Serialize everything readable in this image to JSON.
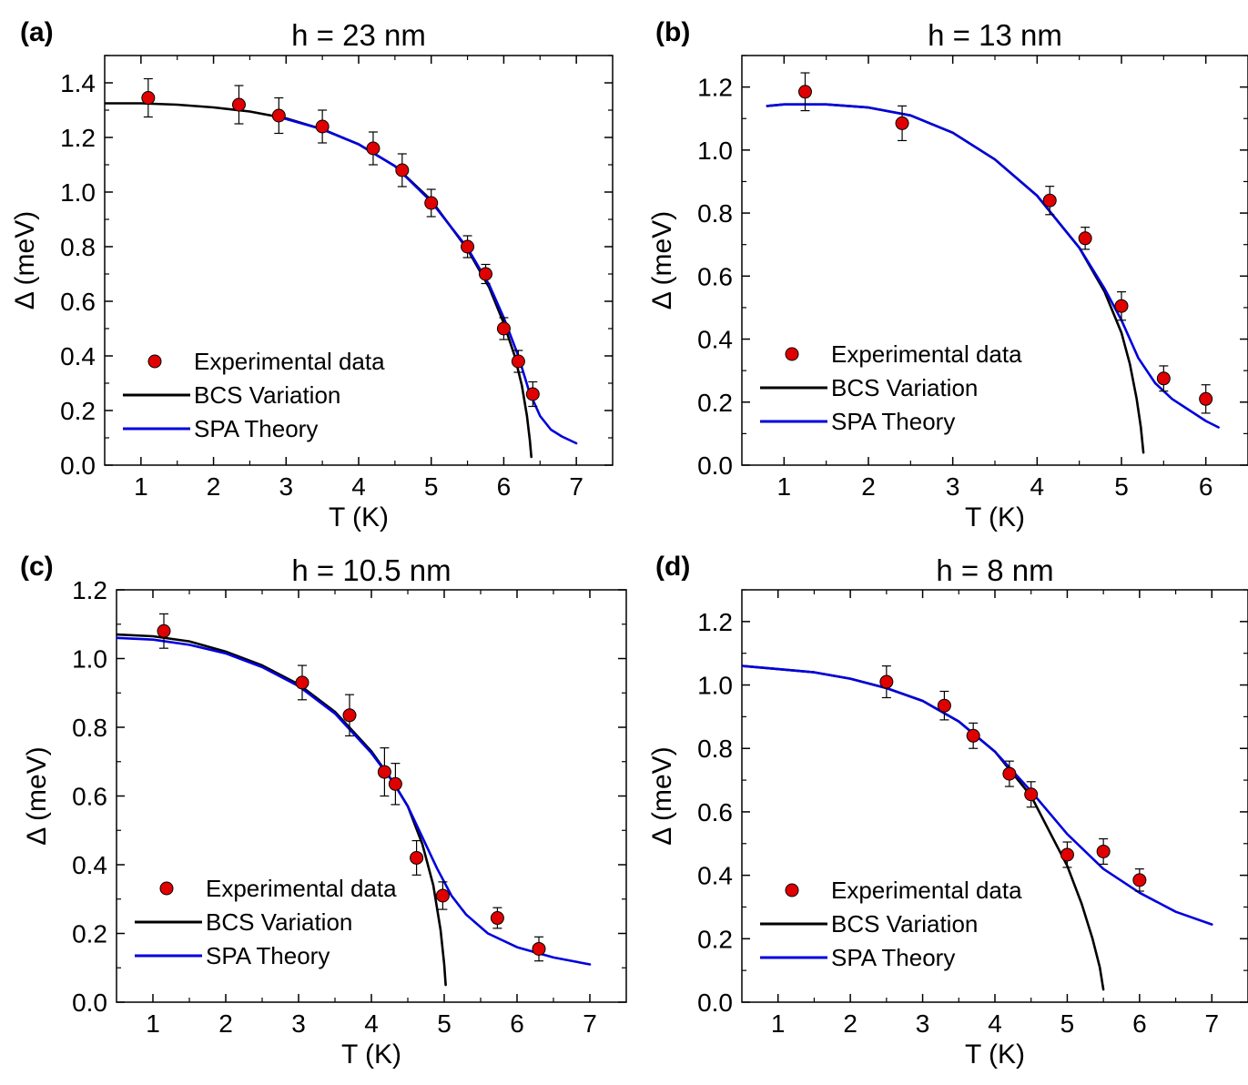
{
  "chart_data": [
    {
      "panel": "(a)",
      "type": "scatter",
      "title": "h = 23 nm",
      "xlabel": "T (K)",
      "ylabel": "Δ (meV)",
      "xlim": [
        0.5,
        7.5
      ],
      "ylim": [
        0,
        1.5
      ],
      "xticks": [
        1,
        2,
        3,
        4,
        5,
        6,
        7
      ],
      "yticks": [
        0.0,
        0.2,
        0.4,
        0.6,
        0.8,
        1.0,
        1.2,
        1.4
      ],
      "grid": false,
      "legend_position": "bottom-left",
      "series": [
        {
          "name": "Experimental data",
          "kind": "points",
          "color": "#e00000",
          "x": [
            1.1,
            2.35,
            2.9,
            3.5,
            4.2,
            4.6,
            5.0,
            5.5,
            5.75,
            6.0,
            6.2,
            6.4
          ],
          "y": [
            1.345,
            1.32,
            1.28,
            1.24,
            1.16,
            1.08,
            0.96,
            0.8,
            0.7,
            0.5,
            0.38,
            0.26
          ],
          "err": [
            0.07,
            0.07,
            0.065,
            0.06,
            0.06,
            0.06,
            0.05,
            0.04,
            0.035,
            0.04,
            0.04,
            0.045
          ]
        },
        {
          "name": "BCS Variation",
          "kind": "line",
          "color": "#000000",
          "x": [
            0.5,
            1.0,
            1.5,
            2.0,
            2.5,
            3.0,
            3.5,
            4.0,
            4.5,
            5.0,
            5.5,
            5.8,
            6.0,
            6.15,
            6.25,
            6.32,
            6.36,
            6.38
          ],
          "y": [
            1.325,
            1.325,
            1.32,
            1.31,
            1.295,
            1.27,
            1.23,
            1.175,
            1.095,
            0.97,
            0.79,
            0.65,
            0.52,
            0.4,
            0.29,
            0.18,
            0.09,
            0.03
          ]
        },
        {
          "name": "SPA Theory",
          "kind": "line",
          "color": "#0000dd",
          "x": [
            2.9,
            3.5,
            4.0,
            4.5,
            5.0,
            5.5,
            5.8,
            6.0,
            6.2,
            6.35,
            6.5,
            6.65,
            6.8,
            7.0
          ],
          "y": [
            1.275,
            1.23,
            1.175,
            1.095,
            0.965,
            0.795,
            0.66,
            0.54,
            0.4,
            0.27,
            0.18,
            0.13,
            0.105,
            0.08
          ]
        }
      ]
    },
    {
      "panel": "(b)",
      "type": "scatter",
      "title": "h = 13 nm",
      "xlabel": "T (K)",
      "ylabel": "Δ (meV)",
      "xlim": [
        0.5,
        6.5
      ],
      "ylim": [
        0,
        1.3
      ],
      "xticks": [
        1,
        2,
        3,
        4,
        5,
        6
      ],
      "yticks": [
        0.0,
        0.2,
        0.4,
        0.6,
        0.8,
        1.0,
        1.2
      ],
      "grid": false,
      "legend_position": "bottom-left",
      "series": [
        {
          "name": "Experimental data",
          "kind": "points",
          "color": "#e00000",
          "x": [
            1.25,
            2.4,
            4.15,
            4.57,
            5.0,
            5.5,
            6.0
          ],
          "y": [
            1.185,
            1.085,
            0.84,
            0.72,
            0.505,
            0.275,
            0.21
          ],
          "err": [
            0.06,
            0.055,
            0.045,
            0.035,
            0.045,
            0.04,
            0.045
          ]
        },
        {
          "name": "BCS Variation",
          "kind": "line",
          "color": "#000000",
          "x": [
            0.8,
            1.0,
            1.5,
            2.0,
            2.5,
            3.0,
            3.5,
            4.0,
            4.5,
            4.8,
            5.0,
            5.1,
            5.18,
            5.23,
            5.26
          ],
          "y": [
            1.14,
            1.145,
            1.145,
            1.135,
            1.11,
            1.055,
            0.97,
            0.855,
            0.69,
            0.55,
            0.42,
            0.32,
            0.21,
            0.12,
            0.04
          ]
        },
        {
          "name": "SPA Theory",
          "kind": "line",
          "color": "#0000dd",
          "x": [
            0.8,
            1.0,
            1.5,
            2.0,
            2.5,
            3.0,
            3.5,
            4.0,
            4.5,
            4.8,
            5.0,
            5.2,
            5.4,
            5.6,
            5.8,
            6.0,
            6.15
          ],
          "y": [
            1.14,
            1.145,
            1.145,
            1.135,
            1.11,
            1.055,
            0.97,
            0.855,
            0.69,
            0.56,
            0.46,
            0.34,
            0.26,
            0.21,
            0.175,
            0.14,
            0.12
          ]
        }
      ]
    },
    {
      "panel": "(c)",
      "type": "scatter",
      "title": "h = 10.5 nm",
      "xlabel": "T (K)",
      "ylabel": "Δ (meV)",
      "xlim": [
        0.5,
        7.5
      ],
      "ylim": [
        0,
        1.2
      ],
      "xticks": [
        1,
        2,
        3,
        4,
        5,
        6,
        7
      ],
      "yticks": [
        0.0,
        0.2,
        0.4,
        0.6,
        0.8,
        1.0,
        1.2
      ],
      "grid": false,
      "legend_position": "bottom-left",
      "series": [
        {
          "name": "Experimental data",
          "kind": "points",
          "color": "#e00000",
          "x": [
            1.15,
            3.05,
            3.7,
            4.18,
            4.33,
            4.62,
            4.98,
            5.73,
            6.3
          ],
          "y": [
            1.08,
            0.93,
            0.835,
            0.67,
            0.635,
            0.42,
            0.31,
            0.245,
            0.155
          ],
          "err": [
            0.05,
            0.05,
            0.06,
            0.07,
            0.06,
            0.05,
            0.04,
            0.03,
            0.035
          ]
        },
        {
          "name": "BCS Variation",
          "kind": "line",
          "color": "#000000",
          "x": [
            0.5,
            1.0,
            1.5,
            2.0,
            2.5,
            3.0,
            3.5,
            4.0,
            4.3,
            4.5,
            4.7,
            4.85,
            4.95,
            5.0,
            5.02
          ],
          "y": [
            1.07,
            1.065,
            1.05,
            1.02,
            0.98,
            0.925,
            0.845,
            0.73,
            0.64,
            0.57,
            0.46,
            0.34,
            0.21,
            0.11,
            0.05
          ]
        },
        {
          "name": "SPA Theory",
          "kind": "line",
          "color": "#0000dd",
          "x": [
            0.5,
            1.0,
            1.5,
            2.0,
            2.5,
            3.0,
            3.5,
            4.0,
            4.3,
            4.5,
            4.7,
            4.9,
            5.1,
            5.3,
            5.6,
            6.0,
            6.5,
            7.0
          ],
          "y": [
            1.06,
            1.055,
            1.04,
            1.015,
            0.975,
            0.92,
            0.84,
            0.725,
            0.64,
            0.57,
            0.48,
            0.39,
            0.31,
            0.255,
            0.2,
            0.16,
            0.13,
            0.11
          ]
        }
      ]
    },
    {
      "panel": "(d)",
      "type": "scatter",
      "title": "h = 8 nm",
      "xlabel": "T (K)",
      "ylabel": "Δ (meV)",
      "xlim": [
        0.5,
        7.5
      ],
      "ylim": [
        0,
        1.3
      ],
      "xticks": [
        1,
        2,
        3,
        4,
        5,
        6,
        7
      ],
      "yticks": [
        0.0,
        0.2,
        0.4,
        0.6,
        0.8,
        1.0,
        1.2
      ],
      "grid": false,
      "legend_position": "bottom-left",
      "series": [
        {
          "name": "Experimental data",
          "kind": "points",
          "color": "#e00000",
          "x": [
            2.5,
            3.3,
            3.7,
            4.2,
            4.5,
            5.0,
            5.5,
            6.0
          ],
          "y": [
            1.01,
            0.935,
            0.84,
            0.72,
            0.655,
            0.465,
            0.475,
            0.385
          ],
          "err": [
            0.05,
            0.045,
            0.04,
            0.04,
            0.04,
            0.04,
            0.04,
            0.035
          ]
        },
        {
          "name": "BCS Variation",
          "kind": "line",
          "color": "#000000",
          "x": [
            0.5,
            1.0,
            1.5,
            2.0,
            2.5,
            3.0,
            3.5,
            4.0,
            4.5,
            5.0,
            5.2,
            5.35,
            5.45,
            5.5
          ],
          "y": [
            1.06,
            1.05,
            1.04,
            1.02,
            0.99,
            0.95,
            0.885,
            0.79,
            0.65,
            0.43,
            0.31,
            0.2,
            0.11,
            0.04
          ]
        },
        {
          "name": "SPA Theory",
          "kind": "line",
          "color": "#0000dd",
          "x": [
            0.5,
            1.0,
            1.5,
            2.0,
            2.5,
            3.0,
            3.5,
            4.0,
            4.5,
            5.0,
            5.5,
            6.0,
            6.5,
            7.0
          ],
          "y": [
            1.06,
            1.05,
            1.04,
            1.02,
            0.99,
            0.95,
            0.885,
            0.79,
            0.665,
            0.53,
            0.42,
            0.345,
            0.285,
            0.245
          ]
        }
      ]
    }
  ]
}
